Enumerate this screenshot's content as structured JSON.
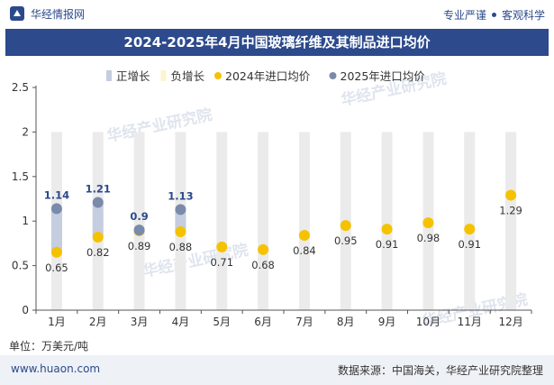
{
  "header": {
    "brand": "华经情报网",
    "slogan_left": "专业严谨",
    "slogan_right": "客观科学"
  },
  "title": "2024-2025年4月中国玻璃纤维及其制品进口均价",
  "unit": "单位：万美元/吨",
  "footer": {
    "site": "www.huaon.com",
    "source": "数据来源：中国海关，华经产业研究院整理"
  },
  "watermark": "华经产业研究院",
  "colors": {
    "pos_growth": "#c5cde0",
    "neg_growth": "#fdf3d0",
    "series2024": "#f5c200",
    "series2025": "#7a8aaa",
    "column_bg": "#ebebeb"
  },
  "chart_data": {
    "type": "scatter",
    "title": "2024-2025年4月中国玻璃纤维及其制品进口均价",
    "ylabel": "单位：万美元/吨",
    "ylim": [
      0,
      2.5
    ],
    "yticks": [
      "0",
      "0.5",
      "1",
      "1.5",
      "2",
      "2.5"
    ],
    "categories": [
      "1月",
      "2月",
      "3月",
      "4月",
      "5月",
      "6月",
      "7月",
      "8月",
      "9月",
      "10月",
      "11月",
      "12月"
    ],
    "legend": [
      "正增长",
      "负增长",
      "2024年进口均价",
      "2025年进口均价"
    ],
    "series": [
      {
        "name": "2024年进口均价",
        "values": [
          0.65,
          0.82,
          0.89,
          0.88,
          0.71,
          0.68,
          0.84,
          0.95,
          0.91,
          0.98,
          0.91,
          1.29
        ],
        "labels": [
          "0.65",
          "0.82",
          "0.89",
          "0.88",
          "0.71",
          "0.68",
          "0.84",
          "0.95",
          "0.91",
          "0.98",
          "0.91",
          "1.29"
        ]
      },
      {
        "name": "2025年进口均价",
        "values": [
          1.14,
          1.21,
          0.9,
          1.13,
          null,
          null,
          null,
          null,
          null,
          null,
          null,
          null
        ],
        "labels": [
          "1.14",
          "1.21",
          "0.9",
          "1.13"
        ]
      }
    ],
    "grid": false,
    "legend_position": "top"
  }
}
